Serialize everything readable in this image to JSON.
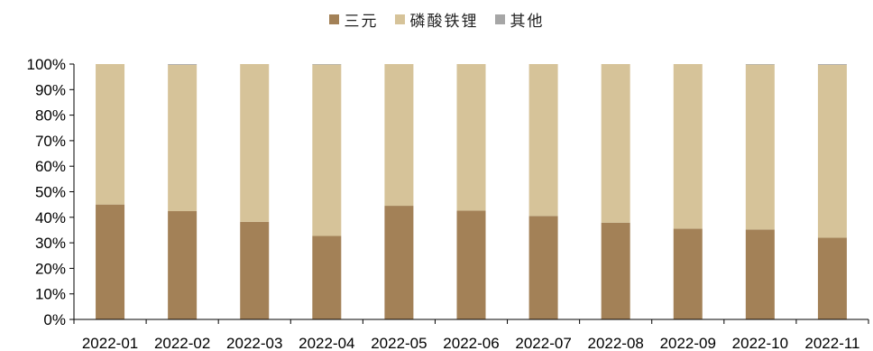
{
  "chart_data": {
    "type": "bar",
    "stacked": true,
    "categories": [
      "2022-01",
      "2022-02",
      "2022-03",
      "2022-04",
      "2022-05",
      "2022-06",
      "2022-07",
      "2022-08",
      "2022-09",
      "2022-10",
      "2022-11"
    ],
    "series": [
      {
        "name": "三元",
        "color": "#a38157",
        "values": [
          45.0,
          42.4,
          38.2,
          32.7,
          44.5,
          42.6,
          40.5,
          37.9,
          35.5,
          35.2,
          32.0
        ]
      },
      {
        "name": "磷酸铁锂",
        "color": "#d6c399",
        "values": [
          55.0,
          57.3,
          61.8,
          67.1,
          55.5,
          57.4,
          59.5,
          62.1,
          64.5,
          64.6,
          67.7
        ]
      },
      {
        "name": "其他",
        "color": "#a6a6a6",
        "values": [
          0.0,
          0.3,
          0.0,
          0.2,
          0.0,
          0.0,
          0.0,
          0.0,
          0.0,
          0.2,
          0.3
        ]
      }
    ],
    "yticks": [
      "0%",
      "10%",
      "20%",
      "30%",
      "40%",
      "50%",
      "60%",
      "70%",
      "80%",
      "90%",
      "100%"
    ],
    "ylim": [
      0,
      100
    ],
    "legend_position": "top-center",
    "grid": false
  }
}
